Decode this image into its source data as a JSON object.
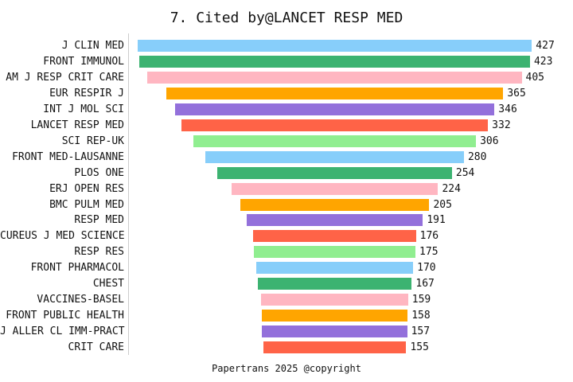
{
  "chart_data": {
    "type": "bar",
    "orientation": "horizontal-centered-funnel",
    "title": "7. Cited by@LANCET RESP MED",
    "categories": [
      "J CLIN MED",
      "FRONT IMMUNOL",
      "AM J RESP CRIT CARE",
      "EUR RESPIR J",
      "INT J MOL SCI",
      "LANCET RESP MED",
      "SCI REP-UK",
      "FRONT MED-LAUSANNE",
      "PLOS ONE",
      "ERJ OPEN RES",
      "BMC PULM MED",
      "RESP MED",
      "CUREUS J MED SCIENCE",
      "RESP RES",
      "FRONT PHARMACOL",
      "CHEST",
      "VACCINES-BASEL",
      "FRONT PUBLIC HEALTH",
      "J ALLER CL IMM-PRACT",
      "CRIT CARE"
    ],
    "values": [
      427,
      423,
      405,
      365,
      346,
      332,
      306,
      280,
      254,
      224,
      205,
      191,
      176,
      175,
      170,
      167,
      159,
      158,
      157,
      155
    ],
    "palette": [
      "#87CEFA",
      "#3CB371",
      "#FFB6C1",
      "#FFA500",
      "#9370DB",
      "#FF6347",
      "#90EE90"
    ],
    "axis_color": "#cccccc",
    "value_labels": true,
    "grid": false,
    "legend": false,
    "xlim": [
      0,
      427
    ]
  },
  "footer": {
    "text": "Papertrans 2025 @copyright"
  }
}
